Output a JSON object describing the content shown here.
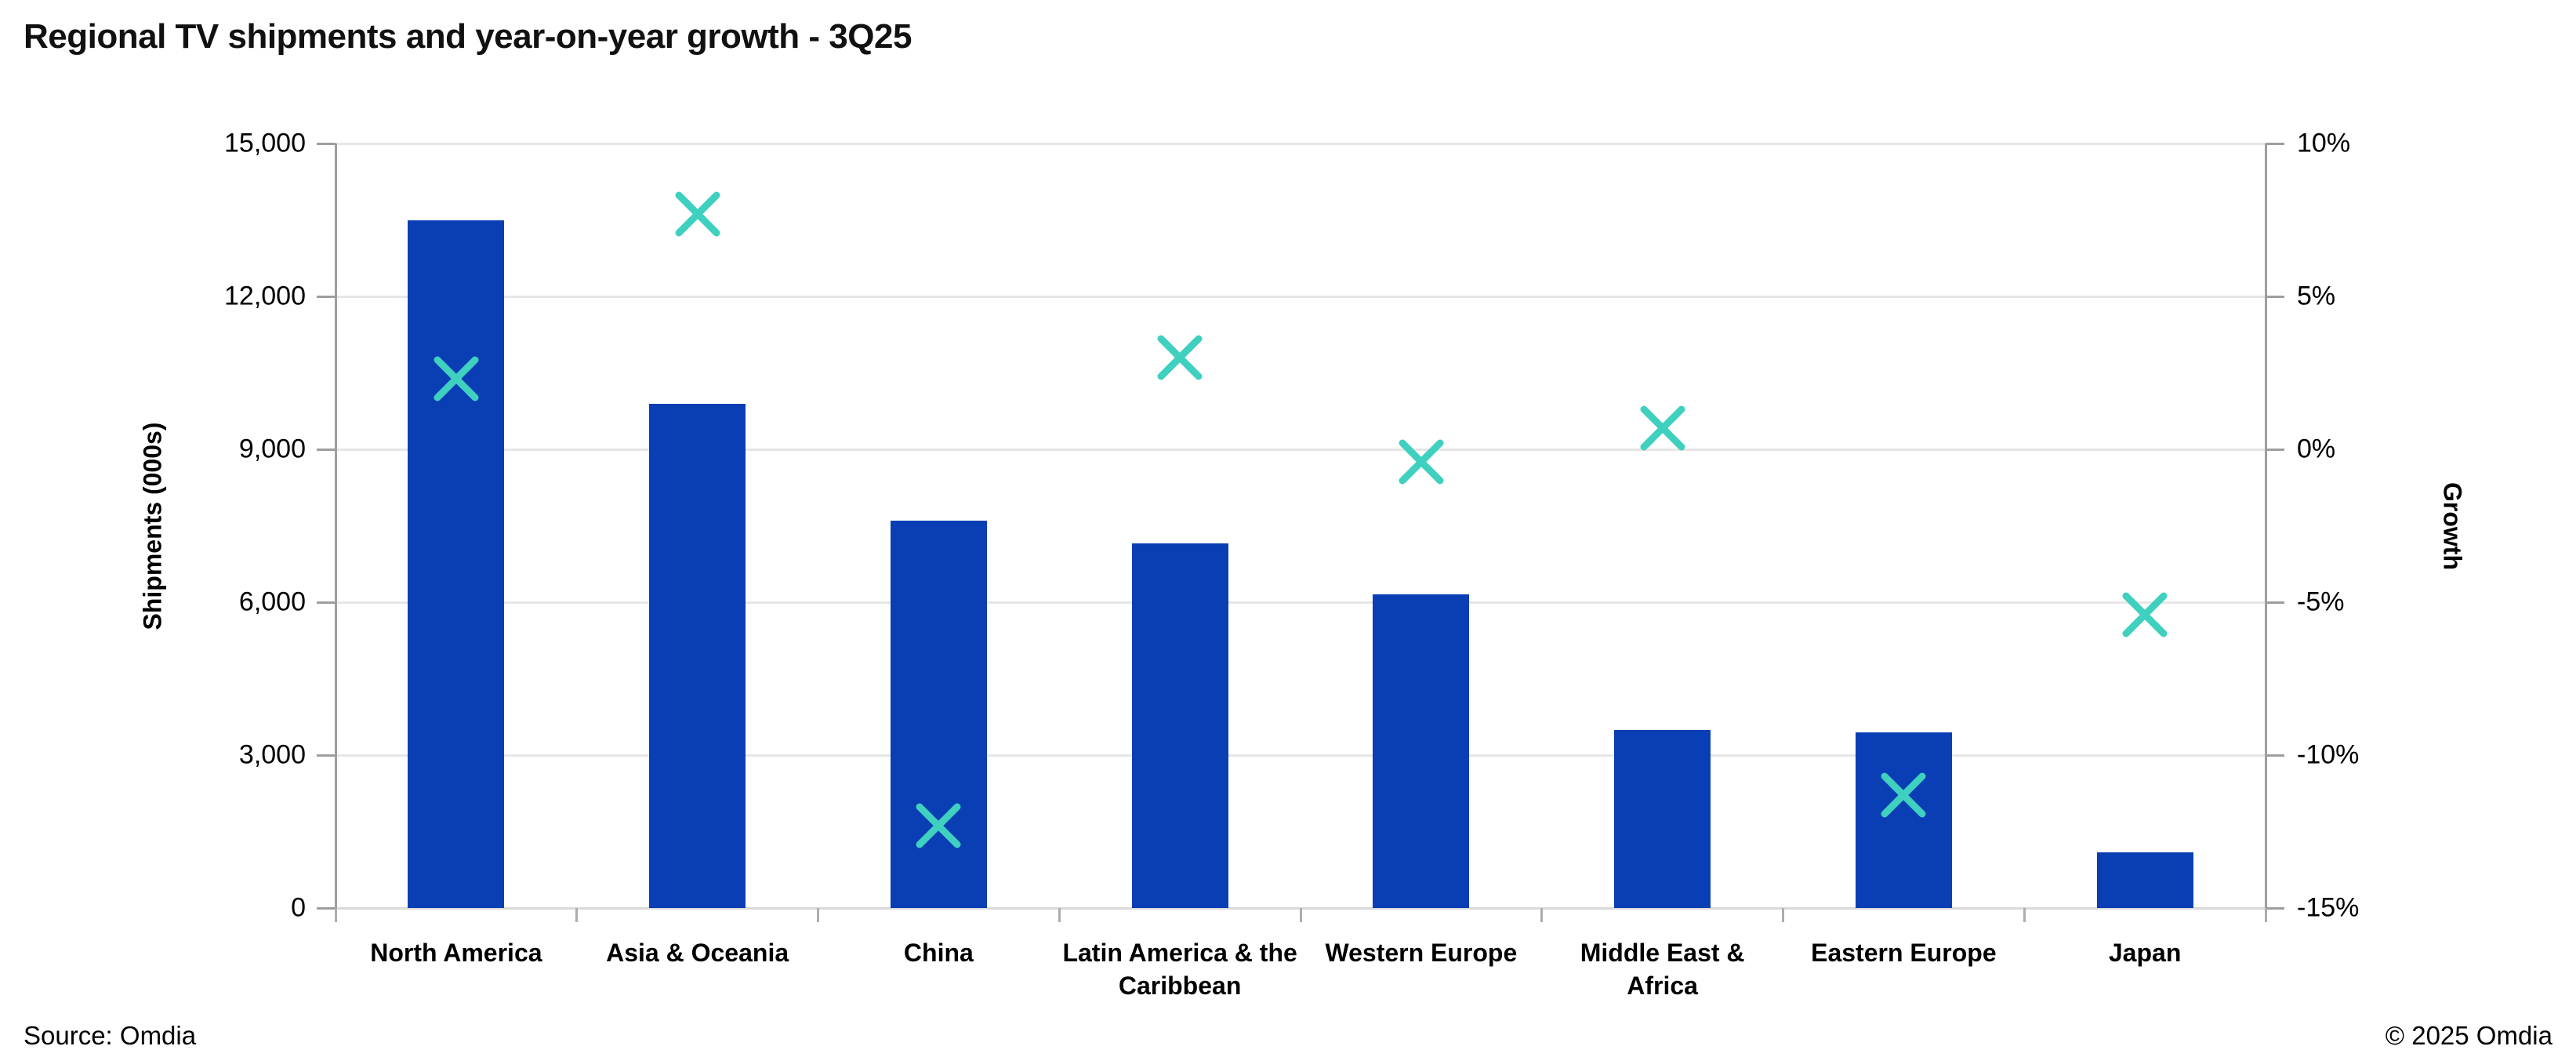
{
  "title": "Regional TV shipments and year-on-year growth - 3Q25",
  "footer": {
    "source": "Source: Omdia",
    "copyright": "© 2025 Omdia"
  },
  "colors": {
    "bar": "#0A3EB4",
    "marker": "#3FD0BF",
    "gridline": "#E6E6E6",
    "axis_line": "#9E9E9E",
    "baseline": "#D9D9D9",
    "title_text": "#111111",
    "text": "#000000"
  },
  "chart_data": {
    "type": "bar",
    "subtype": "dual-axis column chart with scatter x-markers",
    "title": "Regional TV shipments and year-on-year growth - 3Q25",
    "categories": [
      "North America",
      "Asia & Oceania",
      "China",
      "Latin America & the Caribbean",
      "Western Europe",
      "Middle East & Africa",
      "Eastern Europe",
      "Japan"
    ],
    "series": [
      {
        "name": "Shipments (000s)",
        "plot": "bar",
        "axis": "left",
        "color": "#0A3EB4",
        "values": [
          13500,
          9900,
          7600,
          7150,
          6150,
          3500,
          3450,
          1100
        ]
      },
      {
        "name": "Growth",
        "plot": "scatter",
        "marker": "x",
        "axis": "right",
        "color": "#3FD0BF",
        "values": [
          2.3,
          7.7,
          -12.3,
          3.0,
          -0.4,
          0.7,
          -11.3,
          -5.4
        ]
      }
    ],
    "left_axis": {
      "label": "Shipments (000s)",
      "min": 0,
      "max": 15000,
      "step": 3000,
      "tick_labels": [
        "15,000",
        "12,000",
        "9,000",
        "6,000",
        "3,000",
        "0"
      ]
    },
    "right_axis": {
      "label": "Growth",
      "min": -15,
      "max": 10,
      "step": 5,
      "tick_labels": [
        "10%",
        "5%",
        "0%",
        "-5%",
        "-10%",
        "-15%"
      ]
    },
    "grid": true,
    "legend": false
  }
}
